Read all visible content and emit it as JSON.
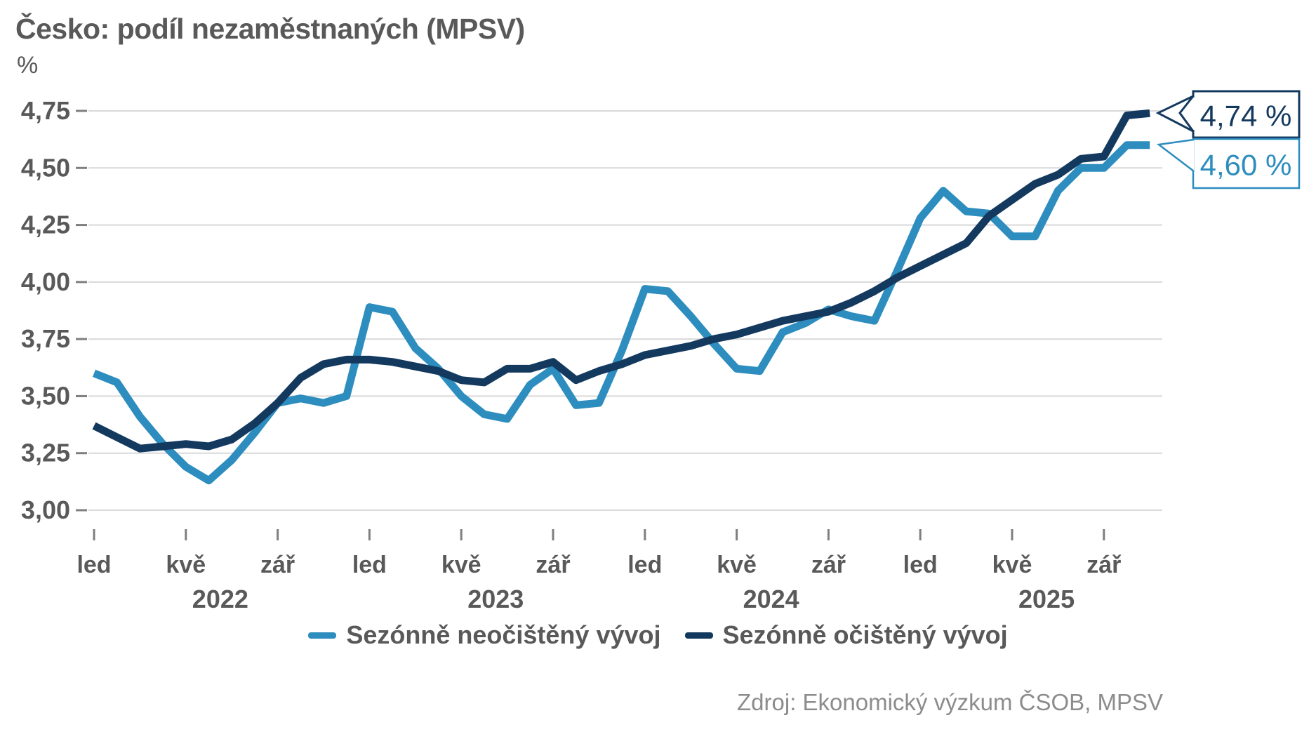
{
  "title": "Česko: podíl nezaměstnaných (MPSV)",
  "y_axis_unit": "%",
  "source_note": "Zdroj: Ekonomický výzkum ČSOB, MPSV",
  "colors": {
    "unadjusted": "#2C8DBE",
    "adjusted": "#14395F",
    "axis_text": "#595959",
    "grid_line": "#D9D9D9",
    "tick_mark": "#7F7F7F",
    "source_text": "#8C8C8C",
    "background": "#FFFFFF"
  },
  "legend": {
    "items": [
      {
        "key": "unadjusted",
        "label": "Sezónně neočištěný vývoj"
      },
      {
        "key": "adjusted",
        "label": "Sezónně očištěný vývoj"
      }
    ]
  },
  "callouts": [
    {
      "key": "adjusted",
      "label": "4,74 %"
    },
    {
      "key": "unadjusted",
      "label": "4,60 %"
    }
  ],
  "chart_data": {
    "type": "line",
    "title": "Česko: podíl nezaměstnaných (MPSV)",
    "ylabel": "%",
    "x_frequency": "monthly",
    "x_start": "2022-01",
    "x_end": "2025-11",
    "grid": "horizontal",
    "legend_position": "bottom",
    "ylim": [
      3.0,
      4.75
    ],
    "y_ticks": [
      {
        "value": 4.75,
        "label": "4,75"
      },
      {
        "value": 4.5,
        "label": "4,50"
      },
      {
        "value": 4.25,
        "label": "4,25"
      },
      {
        "value": 4.0,
        "label": "4,00"
      },
      {
        "value": 3.75,
        "label": "3,75"
      },
      {
        "value": 3.5,
        "label": "3,50"
      },
      {
        "value": 3.25,
        "label": "3,25"
      },
      {
        "value": 3.0,
        "label": "3,00"
      }
    ],
    "x_tick_labels": [
      {
        "index": 0,
        "label": "led"
      },
      {
        "index": 4,
        "label": "kvě"
      },
      {
        "index": 8,
        "label": "zář"
      },
      {
        "index": 12,
        "label": "led"
      },
      {
        "index": 16,
        "label": "kvě"
      },
      {
        "index": 20,
        "label": "zář"
      },
      {
        "index": 24,
        "label": "led"
      },
      {
        "index": 28,
        "label": "kvě"
      },
      {
        "index": 32,
        "label": "zář"
      },
      {
        "index": 36,
        "label": "led"
      },
      {
        "index": 40,
        "label": "kvě"
      },
      {
        "index": 44,
        "label": "zář"
      }
    ],
    "year_labels": [
      "2022",
      "2023",
      "2024",
      "2025"
    ],
    "series": [
      {
        "key": "unadjusted",
        "name": "Sezónně neočištěný vývoj",
        "last_value_label": "4,60 %",
        "values": [
          3.6,
          3.56,
          3.41,
          3.29,
          3.19,
          3.13,
          3.22,
          3.34,
          3.47,
          3.49,
          3.47,
          3.5,
          3.89,
          3.87,
          3.71,
          3.62,
          3.5,
          3.42,
          3.4,
          3.55,
          3.62,
          3.46,
          3.47,
          3.7,
          3.97,
          3.96,
          3.85,
          3.73,
          3.62,
          3.61,
          3.78,
          3.82,
          3.88,
          3.85,
          3.83,
          4.05,
          4.28,
          4.4,
          4.31,
          4.3,
          4.2,
          4.2,
          4.4,
          4.5,
          4.5,
          4.6,
          4.6
        ]
      },
      {
        "key": "adjusted",
        "name": "Sezónně očištěný vývoj",
        "last_value_label": "4,74 %",
        "values": [
          3.37,
          3.32,
          3.27,
          3.28,
          3.29,
          3.28,
          3.31,
          3.38,
          3.47,
          3.58,
          3.64,
          3.66,
          3.66,
          3.65,
          3.63,
          3.61,
          3.57,
          3.56,
          3.62,
          3.62,
          3.65,
          3.57,
          3.61,
          3.64,
          3.68,
          3.7,
          3.72,
          3.75,
          3.77,
          3.8,
          3.83,
          3.85,
          3.87,
          3.91,
          3.96,
          4.02,
          4.07,
          4.12,
          4.17,
          4.29,
          4.36,
          4.43,
          4.47,
          4.54,
          4.55,
          4.73,
          4.74
        ]
      }
    ]
  }
}
